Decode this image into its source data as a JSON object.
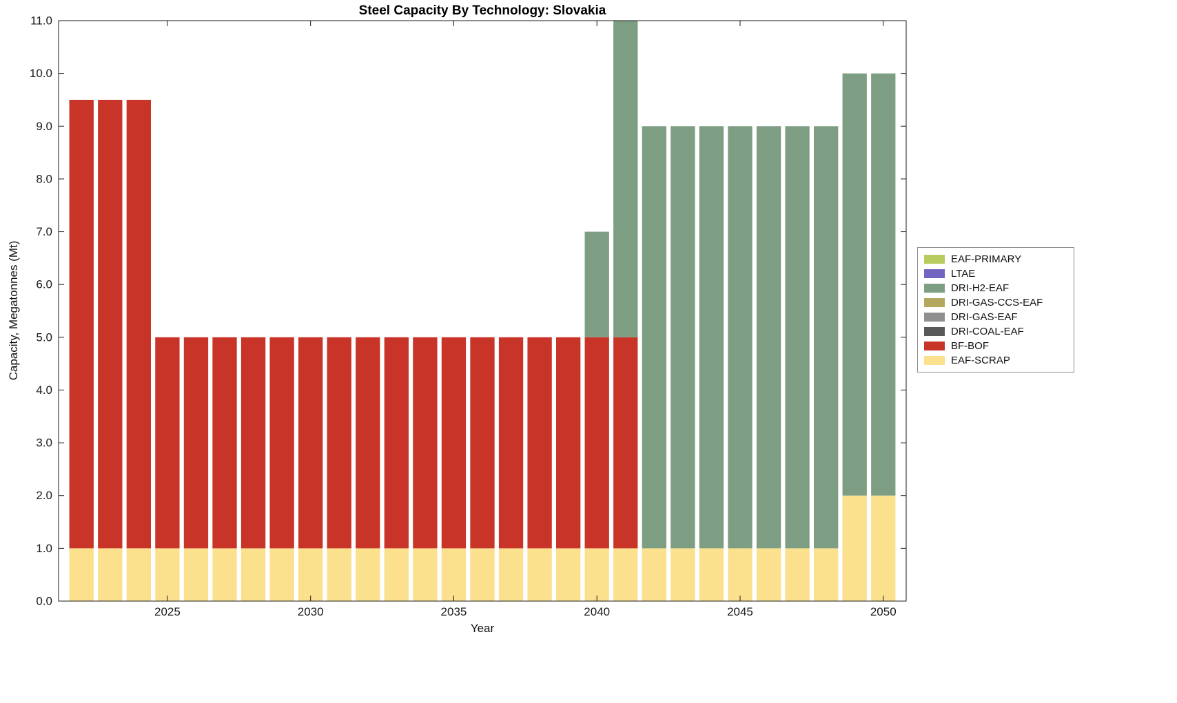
{
  "chart_data": {
    "type": "bar",
    "stacked": true,
    "title": "Steel Capacity By Technology: Slovakia",
    "xlabel": "Year",
    "ylabel": "Capacity, Megatonnes (Mt)",
    "xlim": [
      2021.2,
      2050.8
    ],
    "ylim": [
      0,
      11
    ],
    "xtick_values": [
      2025,
      2030,
      2035,
      2040,
      2045,
      2050
    ],
    "xtick_labels": [
      "2025",
      "2030",
      "2035",
      "2040",
      "2045",
      "2050"
    ],
    "ytick_values": [
      0,
      1,
      2,
      3,
      4,
      5,
      6,
      7,
      8,
      9,
      10,
      11
    ],
    "ytick_labels": [
      "0.0",
      "1.0",
      "2.0",
      "3.0",
      "4.0",
      "5.0",
      "6.0",
      "7.0",
      "8.0",
      "9.0",
      "10.0",
      "11.0"
    ],
    "grid": false,
    "years": [
      2022,
      2023,
      2024,
      2025,
      2026,
      2027,
      2028,
      2029,
      2030,
      2031,
      2032,
      2033,
      2034,
      2035,
      2036,
      2037,
      2038,
      2039,
      2040,
      2041,
      2042,
      2043,
      2044,
      2045,
      2046,
      2047,
      2048,
      2049,
      2050
    ],
    "series": [
      {
        "name": "EAF-SCRAP",
        "color": "#fbe08d",
        "values": [
          1,
          1,
          1,
          1,
          1,
          1,
          1,
          1,
          1,
          1,
          1,
          1,
          1,
          1,
          1,
          1,
          1,
          1,
          1,
          1,
          1,
          1,
          1,
          1,
          1,
          1,
          1,
          2,
          2
        ]
      },
      {
        "name": "BF-BOF",
        "color": "#c93428",
        "values": [
          8.5,
          8.5,
          8.5,
          4,
          4,
          4,
          4,
          4,
          4,
          4,
          4,
          4,
          4,
          4,
          4,
          4,
          4,
          4,
          4,
          4,
          0,
          0,
          0,
          0,
          0,
          0,
          0,
          0,
          0
        ]
      },
      {
        "name": "DRI-COAL-EAF",
        "color": "#595959",
        "values": [
          0,
          0,
          0,
          0,
          0,
          0,
          0,
          0,
          0,
          0,
          0,
          0,
          0,
          0,
          0,
          0,
          0,
          0,
          0,
          0,
          0,
          0,
          0,
          0,
          0,
          0,
          0,
          0,
          0
        ]
      },
      {
        "name": "DRI-GAS-EAF",
        "color": "#8f8f8f",
        "values": [
          0,
          0,
          0,
          0,
          0,
          0,
          0,
          0,
          0,
          0,
          0,
          0,
          0,
          0,
          0,
          0,
          0,
          0,
          0,
          0,
          0,
          0,
          0,
          0,
          0,
          0,
          0,
          0,
          0
        ]
      },
      {
        "name": "DRI-GAS-CCS-EAF",
        "color": "#b4a85e",
        "values": [
          0,
          0,
          0,
          0,
          0,
          0,
          0,
          0,
          0,
          0,
          0,
          0,
          0,
          0,
          0,
          0,
          0,
          0,
          0,
          0,
          0,
          0,
          0,
          0,
          0,
          0,
          0,
          0,
          0
        ]
      },
      {
        "name": "DRI-H2-EAF",
        "color": "#7d9e82",
        "values": [
          0,
          0,
          0,
          0,
          0,
          0,
          0,
          0,
          0,
          0,
          0,
          0,
          0,
          0,
          0,
          0,
          0,
          0,
          2,
          6,
          8,
          8,
          8,
          8,
          8,
          8,
          8,
          8,
          8
        ]
      },
      {
        "name": "LTAE",
        "color": "#7165c1",
        "values": [
          0,
          0,
          0,
          0,
          0,
          0,
          0,
          0,
          0,
          0,
          0,
          0,
          0,
          0,
          0,
          0,
          0,
          0,
          0,
          0,
          0,
          0,
          0,
          0,
          0,
          0,
          0,
          0,
          0
        ]
      },
      {
        "name": "EAF-PRIMARY",
        "color": "#b8cb5e",
        "values": [
          0,
          0,
          0,
          0,
          0,
          0,
          0,
          0,
          0,
          0,
          0,
          0,
          0,
          0,
          0,
          0,
          0,
          0,
          0,
          0,
          0,
          0,
          0,
          0,
          0,
          0,
          0,
          0,
          0
        ]
      }
    ],
    "legend": {
      "position": "outside-right-middle",
      "entries": [
        {
          "label": "EAF-PRIMARY",
          "color": "#b8cb5e"
        },
        {
          "label": "LTAE",
          "color": "#7165c1"
        },
        {
          "label": "DRI-H2-EAF",
          "color": "#7d9e82"
        },
        {
          "label": "DRI-GAS-CCS-EAF",
          "color": "#b4a85e"
        },
        {
          "label": "DRI-GAS-EAF",
          "color": "#8f8f8f"
        },
        {
          "label": "DRI-COAL-EAF",
          "color": "#595959"
        },
        {
          "label": "BF-BOF",
          "color": "#c93428"
        },
        {
          "label": "EAF-SCRAP",
          "color": "#fbe08d"
        }
      ]
    }
  }
}
